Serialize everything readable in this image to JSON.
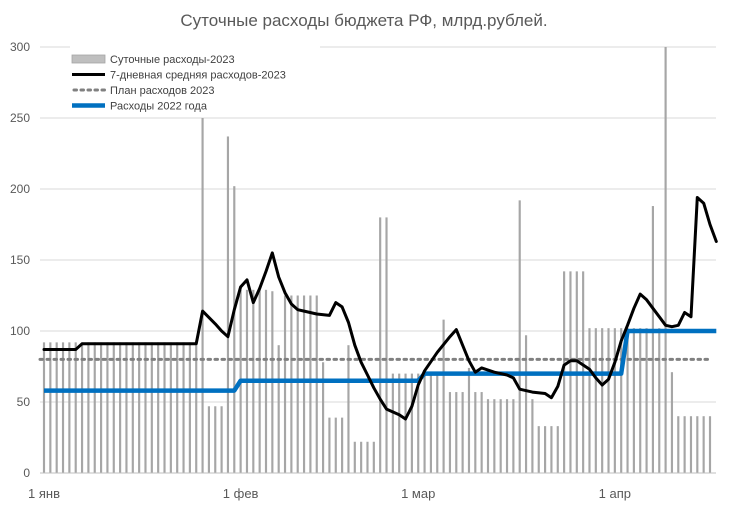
{
  "chart_data": {
    "type": "bar+line",
    "title": "Суточные расходы бюджета РФ, млрд.рублей.",
    "xlabel": "",
    "ylabel": "",
    "ylim": [
      0,
      300
    ],
    "yticks": [
      0,
      50,
      100,
      150,
      200,
      250,
      300
    ],
    "xlim": [
      1,
      106
    ],
    "xticks": [
      {
        "day": 1,
        "label": "1 янв"
      },
      {
        "day": 32,
        "label": "1 фев"
      },
      {
        "day": 60,
        "label": "1 мар"
      },
      {
        "day": 91,
        "label": "1 апр"
      }
    ],
    "grid": "horizontal",
    "legend_position": "top-left",
    "colors": {
      "daily_bars": "#a6a6a6",
      "moving_average": "#000000",
      "plan": "#808080",
      "spending_2022": "#0070c0",
      "grid": "#d9d9d9",
      "axis_text": "#595959"
    },
    "series": [
      {
        "name": "Суточные расходы-2023",
        "type": "bar",
        "x": [
          1,
          2,
          3,
          4,
          5,
          6,
          7,
          8,
          9,
          10,
          11,
          12,
          13,
          14,
          15,
          16,
          17,
          18,
          19,
          20,
          21,
          22,
          23,
          24,
          25,
          26,
          27,
          28,
          29,
          30,
          31,
          32,
          33,
          34,
          35,
          36,
          37,
          38,
          39,
          40,
          41,
          42,
          43,
          44,
          45,
          46,
          47,
          48,
          49,
          50,
          51,
          52,
          53,
          54,
          55,
          56,
          57,
          58,
          59,
          60,
          61,
          62,
          63,
          64,
          65,
          66,
          67,
          68,
          69,
          70,
          71,
          72,
          73,
          74,
          75,
          76,
          77,
          78,
          79,
          80,
          81,
          82,
          83,
          84,
          85,
          86,
          87,
          88,
          89,
          90,
          91,
          92,
          93,
          94,
          95,
          96,
          97,
          98,
          99,
          100,
          101,
          102,
          103,
          104,
          105,
          106
        ],
        "values": [
          92,
          92,
          92,
          92,
          92,
          92,
          92,
          92,
          92,
          92,
          92,
          92,
          92,
          92,
          92,
          92,
          92,
          92,
          92,
          92,
          92,
          92,
          92,
          92,
          92,
          250,
          47,
          47,
          47,
          237,
          202,
          129,
          129,
          129,
          129,
          129,
          128,
          90,
          125,
          125,
          125,
          125,
          125,
          125,
          78,
          39,
          39,
          39,
          90,
          22,
          22,
          22,
          22,
          180,
          180,
          70,
          70,
          70,
          70,
          70,
          70,
          70,
          70,
          108,
          57,
          57,
          57,
          74,
          57,
          57,
          52,
          52,
          52,
          52,
          52,
          192,
          97,
          52,
          33,
          33,
          33,
          33,
          142,
          142,
          142,
          142,
          102,
          102,
          102,
          102,
          102,
          102,
          102,
          102,
          102,
          102,
          188,
          102,
          300,
          71,
          40,
          40,
          40,
          40,
          40,
          40
        ]
      },
      {
        "name": "7-дневная средняя расходов-2023",
        "type": "line",
        "points": [
          [
            1,
            87
          ],
          [
            6,
            87
          ],
          [
            7,
            91
          ],
          [
            25,
            91
          ],
          [
            26,
            114
          ],
          [
            28,
            105
          ],
          [
            29,
            100
          ],
          [
            30,
            96
          ],
          [
            31,
            115
          ],
          [
            32,
            131
          ],
          [
            33,
            136
          ],
          [
            34,
            120
          ],
          [
            35,
            130
          ],
          [
            36,
            142
          ],
          [
            37,
            155
          ],
          [
            38,
            138
          ],
          [
            39,
            127
          ],
          [
            40,
            119
          ],
          [
            41,
            115
          ],
          [
            42,
            114
          ],
          [
            44,
            112
          ],
          [
            46,
            111
          ],
          [
            47,
            120
          ],
          [
            48,
            117
          ],
          [
            49,
            106
          ],
          [
            50,
            90
          ],
          [
            51,
            78
          ],
          [
            52,
            69
          ],
          [
            53,
            60
          ],
          [
            54,
            52
          ],
          [
            55,
            45
          ],
          [
            57,
            41
          ],
          [
            58,
            38
          ],
          [
            59,
            47
          ],
          [
            60,
            62
          ],
          [
            61,
            72
          ],
          [
            63,
            85
          ],
          [
            65,
            96
          ],
          [
            66,
            101
          ],
          [
            67,
            90
          ],
          [
            68,
            79
          ],
          [
            69,
            71
          ],
          [
            70,
            74
          ],
          [
            72,
            71
          ],
          [
            74,
            69
          ],
          [
            75,
            67
          ],
          [
            76,
            59
          ],
          [
            78,
            57
          ],
          [
            80,
            56
          ],
          [
            81,
            53
          ],
          [
            82,
            61
          ],
          [
            83,
            76
          ],
          [
            84,
            79
          ],
          [
            85,
            79
          ],
          [
            87,
            73
          ],
          [
            88,
            67
          ],
          [
            89,
            62
          ],
          [
            90,
            66
          ],
          [
            91,
            78
          ],
          [
            92,
            93
          ],
          [
            93,
            104
          ],
          [
            94,
            116
          ],
          [
            95,
            126
          ],
          [
            96,
            122
          ],
          [
            97,
            116
          ],
          [
            98,
            110
          ],
          [
            99,
            104
          ],
          [
            100,
            103
          ],
          [
            101,
            104
          ],
          [
            102,
            113
          ],
          [
            103,
            110
          ],
          [
            104,
            194
          ],
          [
            105,
            190
          ],
          [
            106,
            175
          ],
          [
            107,
            163
          ]
        ]
      },
      {
        "name": "План расходов 2023",
        "type": "line-dotted",
        "value": 80
      },
      {
        "name": "Расходы 2022 года",
        "type": "line",
        "points": [
          [
            1,
            58
          ],
          [
            31,
            58
          ],
          [
            32,
            65
          ],
          [
            60,
            65
          ],
          [
            61,
            70
          ],
          [
            92,
            70
          ],
          [
            93,
            100
          ],
          [
            107,
            100
          ]
        ]
      }
    ]
  }
}
